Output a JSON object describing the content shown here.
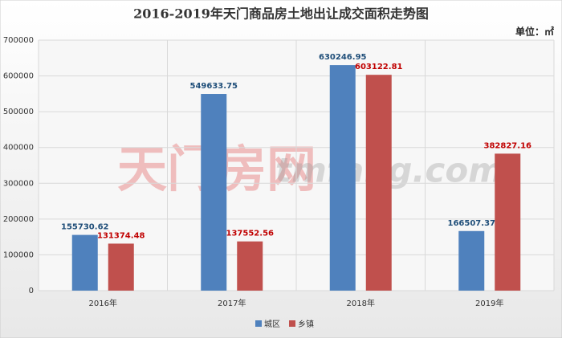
{
  "chart_data": {
    "type": "bar",
    "title": "2016-2019年天门商品房土地出让成交面积走势图",
    "unit": "单位：㎡",
    "watermark": "天门房网",
    "watermark_site": "tmfang.com",
    "categories": [
      "2016年",
      "2017年",
      "2018年",
      "2019年"
    ],
    "series": [
      {
        "name": "城区",
        "color": "#4f81bd",
        "label_color": "#1f4e79",
        "values": [
          155730.62,
          549633.75,
          630246.95,
          166507.37
        ]
      },
      {
        "name": "乡镇",
        "color": "#c0504d",
        "label_color": "#c00000",
        "values": [
          131374.48,
          137552.56,
          603122.81,
          382827.16
        ]
      }
    ],
    "ylim": [
      0,
      700000
    ],
    "yticks": [
      0,
      100000,
      200000,
      300000,
      400000,
      500000,
      600000,
      700000
    ],
    "grid": true
  }
}
